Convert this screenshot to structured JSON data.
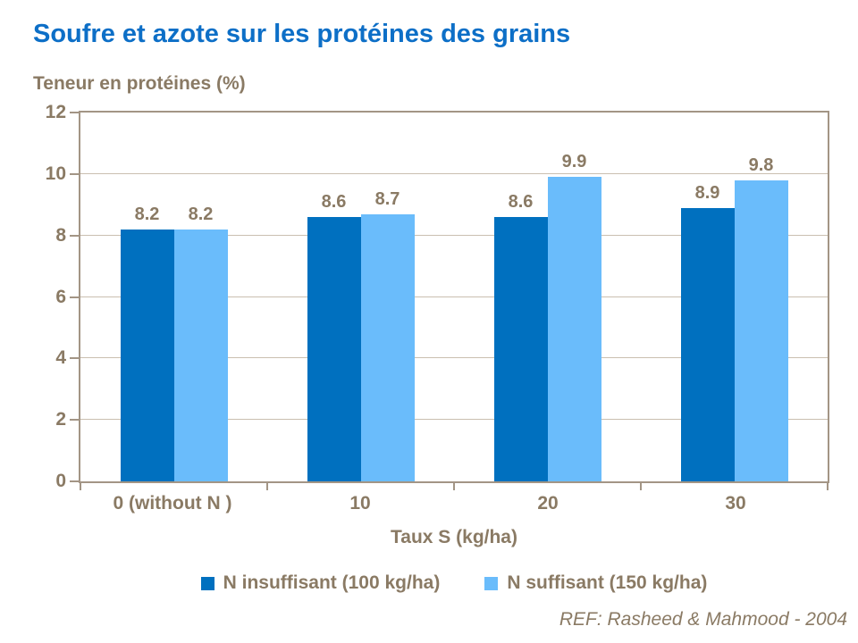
{
  "reference": "REF: Rasheed & Mahmood - 2004",
  "colors": {
    "title_text": "#0d6fc7",
    "chart_text": "#8a7a64",
    "gridline": "#cabfb0",
    "axis": "#a39585",
    "background": "#ffffff"
  },
  "chart_data": {
    "type": "bar",
    "title": "Soufre et azote sur les protéines des grains",
    "ylabel": "Teneur en protéines (%)",
    "xlabel": "Taux S (kg/ha)",
    "categories": [
      "0 (without N )",
      "10",
      "20",
      "30"
    ],
    "series": [
      {
        "name": "N insuffisant (100 kg/ha)",
        "color": "#0070bf",
        "values": [
          8.2,
          8.6,
          8.6,
          8.9
        ]
      },
      {
        "name": "N suffisant (150 kg/ha)",
        "color": "#6abcfb",
        "values": [
          8.2,
          8.7,
          9.9,
          9.8
        ]
      }
    ],
    "ylim": [
      0,
      12
    ],
    "ytick_step": 2,
    "grid": "horizontal",
    "legend_position": "bottom",
    "value_labels": true
  }
}
